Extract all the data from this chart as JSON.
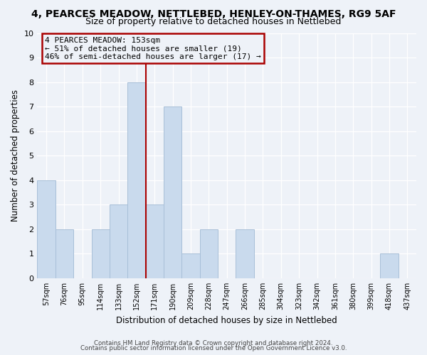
{
  "title1": "4, PEARCES MEADOW, NETTLEBED, HENLEY-ON-THAMES, RG9 5AF",
  "title2": "Size of property relative to detached houses in Nettlebed",
  "xlabel": "Distribution of detached houses by size in Nettlebed",
  "ylabel": "Number of detached properties",
  "bin_labels": [
    "57sqm",
    "76sqm",
    "95sqm",
    "114sqm",
    "133sqm",
    "152sqm",
    "171sqm",
    "190sqm",
    "209sqm",
    "228sqm",
    "247sqm",
    "266sqm",
    "285sqm",
    "304sqm",
    "323sqm",
    "342sqm",
    "361sqm",
    "380sqm",
    "399sqm",
    "418sqm",
    "437sqm"
  ],
  "bar_values": [
    4,
    2,
    0,
    2,
    3,
    8,
    3,
    7,
    1,
    2,
    0,
    2,
    0,
    0,
    0,
    0,
    0,
    0,
    0,
    1,
    0
  ],
  "bar_color": "#c9daed",
  "bar_edgecolor": "#a8bfd8",
  "reference_line_x": 5.5,
  "annotation_title": "4 PEARCES MEADOW: 153sqm",
  "annotation_line1": "← 51% of detached houses are smaller (19)",
  "annotation_line2": "46% of semi-detached houses are larger (17) →",
  "annotation_box_color": "#aa0000",
  "ylim": [
    0,
    10
  ],
  "yticks": [
    0,
    1,
    2,
    3,
    4,
    5,
    6,
    7,
    8,
    9,
    10
  ],
  "footer1": "Contains HM Land Registry data © Crown copyright and database right 2024.",
  "footer2": "Contains public sector information licensed under the Open Government Licence v3.0.",
  "bg_color": "#eef2f8",
  "grid_color": "#ffffff",
  "title_fontsize": 10,
  "subtitle_fontsize": 9
}
